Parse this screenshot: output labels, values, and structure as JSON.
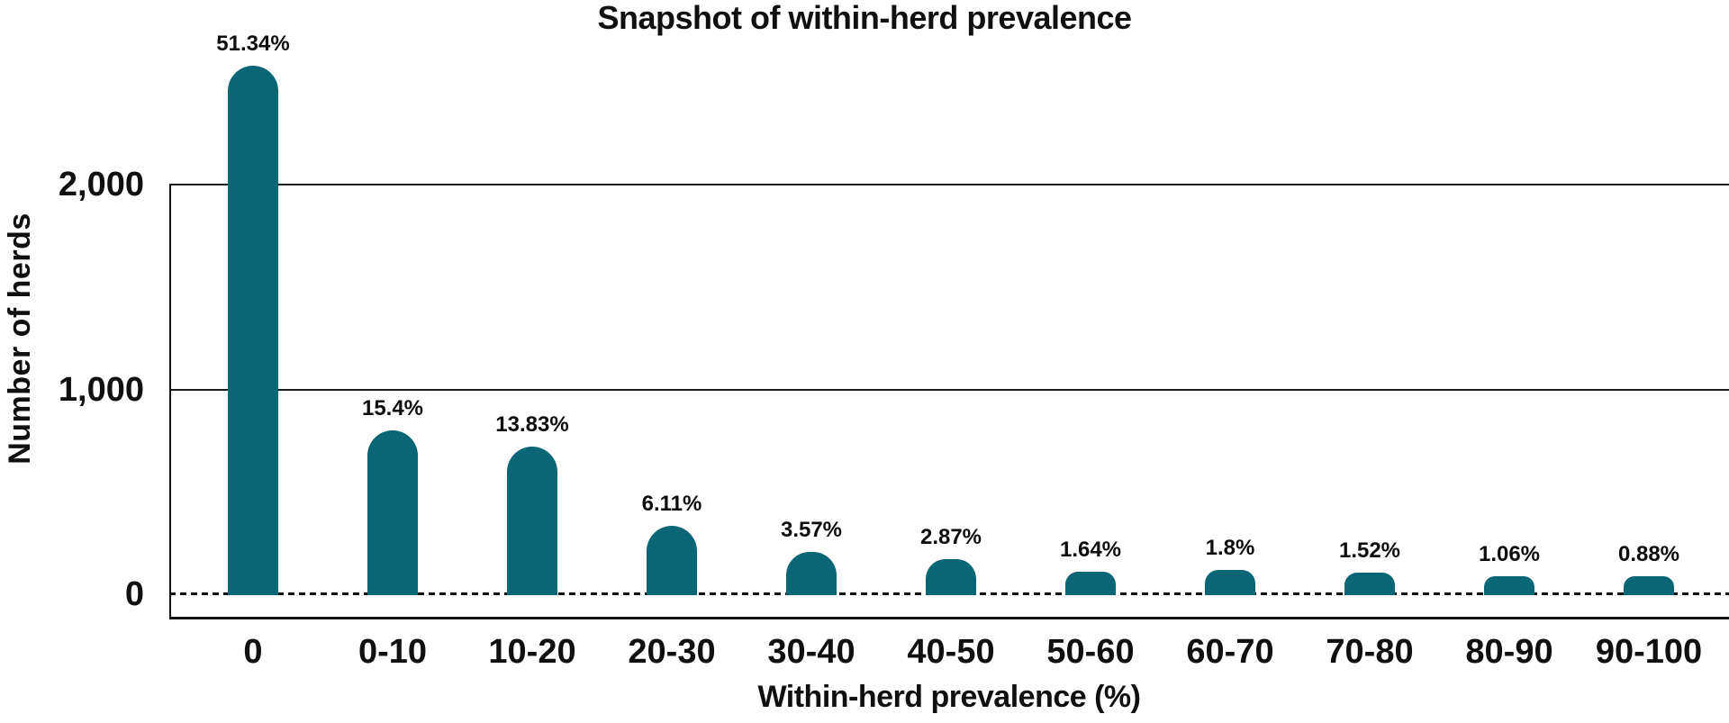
{
  "chart_data": {
    "type": "bar",
    "title": "Snapshot of within-herd prevalence",
    "xlabel": "Within-herd prevalence (%)",
    "ylabel": "Number of herds",
    "categories": [
      "0",
      "0-10",
      "10-20",
      "20-30",
      "30-40",
      "40-50",
      "50-60",
      "60-70",
      "70-80",
      "80-90",
      "90-100"
    ],
    "bar_labels": [
      "51.34%",
      "15.4%",
      "13.83%",
      "6.11%",
      "3.57%",
      "2.87%",
      "1.64%",
      "1.8%",
      "1.52%",
      "1.06%",
      "0.88%"
    ],
    "percent_values": [
      51.34,
      15.4,
      13.83,
      6.11,
      3.57,
      2.87,
      1.64,
      1.8,
      1.52,
      1.06,
      0.88
    ],
    "est_values_herds": [
      2585,
      775,
      696,
      308,
      180,
      144,
      83,
      91,
      77,
      53,
      44
    ],
    "y_ticks": [
      {
        "label": "2,000",
        "value": 2000
      },
      {
        "label": "1,000",
        "value": 1000
      },
      {
        "label": "0",
        "value": 0
      }
    ],
    "ylim": [
      -120,
      2600
    ],
    "grid": "horizontal-lines-at-1000-and-2000",
    "zero_line": "dashed",
    "legend_position": "none",
    "bar_color": "#0a6674",
    "text_color": "#101010",
    "background_color": "#ffffff"
  }
}
